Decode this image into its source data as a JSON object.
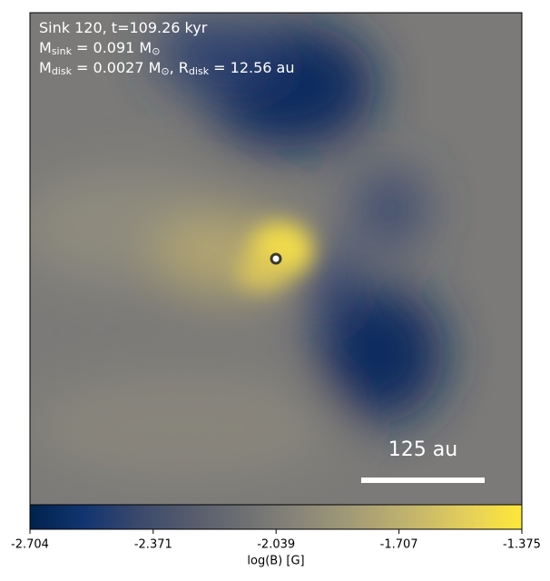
{
  "chart_data": {
    "type": "image",
    "annotation": [
      [
        {
          "text": "Sink 120, t=109.26 kyr"
        }
      ],
      [
        {
          "text": "M"
        },
        {
          "sub": "sink"
        },
        {
          "text": " = 0.091 M"
        },
        {
          "sub": "⊙"
        }
      ],
      [
        {
          "text": "M"
        },
        {
          "sub": "disk"
        },
        {
          "text": " = 0.0027 M"
        },
        {
          "sub": "⊙"
        },
        {
          "text": ", R"
        },
        {
          "sub": "disk"
        },
        {
          "text": " = 12.56 au"
        }
      ]
    ],
    "scalebar_label": "125 au",
    "colorbar": {
      "label": "log(B) [G]",
      "lim": [
        -2.704,
        -1.375
      ],
      "ticks": [
        -2.704,
        -2.371,
        -2.039,
        -1.707,
        -1.375
      ],
      "colors": [
        "#00224e",
        "#123570",
        "#3b496c",
        "#575d6d",
        "#707173",
        "#8a8779",
        "#a69d75",
        "#c4b56c",
        "#e4cf5b",
        "#fee838"
      ]
    }
  }
}
